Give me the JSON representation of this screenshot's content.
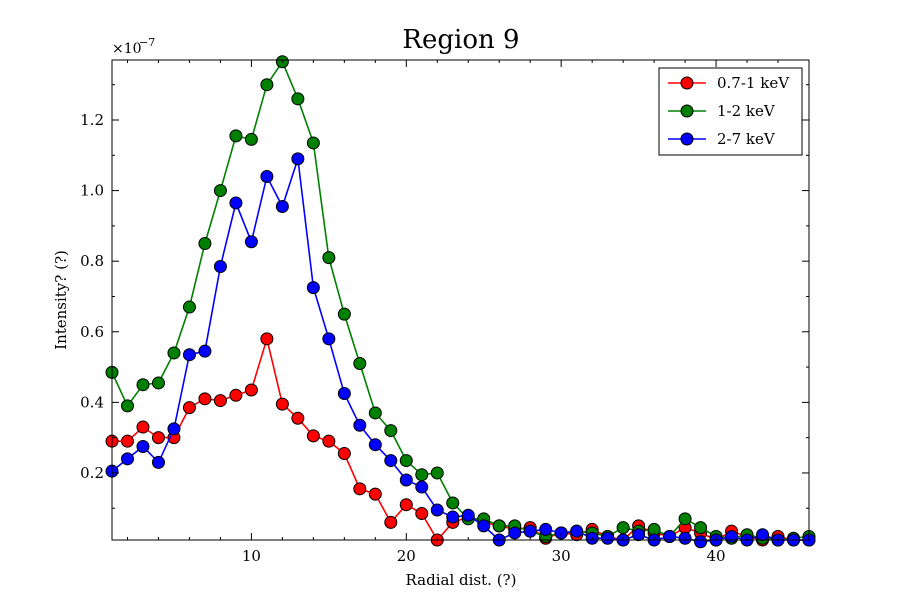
{
  "chart_data": {
    "type": "line",
    "title": "Region 9",
    "xlabel": "Radial dist. (?)",
    "ylabel": "Intensity? (?)",
    "xlim": [
      1,
      46
    ],
    "ylim": [
      0.01,
      1.37
    ],
    "y_scale_exponent_base": "×10",
    "y_scale_exponent": "−7",
    "x_ticks": [
      10,
      20,
      30,
      40
    ],
    "y_ticks": [
      0.2,
      0.4,
      0.6,
      0.8,
      1.0,
      1.2
    ],
    "legend_position": "top-right",
    "grid": false,
    "x": [
      1,
      2,
      3,
      4,
      5,
      6,
      7,
      8,
      9,
      10,
      11,
      12,
      13,
      14,
      15,
      16,
      17,
      18,
      19,
      20,
      21,
      22,
      23,
      24,
      25,
      26,
      27,
      28,
      29,
      30,
      31,
      32,
      33,
      34,
      35,
      36,
      37,
      38,
      39,
      40,
      41,
      42,
      43,
      44,
      45,
      46
    ],
    "series": [
      {
        "name": "0.7-1 keV",
        "color": "#ff0000",
        "values": [
          0.29,
          0.29,
          0.33,
          0.3,
          0.3,
          0.385,
          0.41,
          0.405,
          0.42,
          0.435,
          0.58,
          0.395,
          0.355,
          0.305,
          0.29,
          0.255,
          0.155,
          0.14,
          0.06,
          0.11,
          0.085,
          0.01,
          0.06,
          0.075,
          0.06,
          0.05,
          0.04,
          0.045,
          0.015,
          0.03,
          0.025,
          0.04,
          0.02,
          0.01,
          0.05,
          0.03,
          0.02,
          0.045,
          0.03,
          0.01,
          0.035,
          0.02,
          0.01,
          0.02,
          0.01,
          0.01
        ]
      },
      {
        "name": "1-2 keV",
        "color": "#008000",
        "values": [
          0.485,
          0.39,
          0.45,
          0.455,
          0.54,
          0.67,
          0.85,
          1.0,
          1.155,
          1.145,
          1.3,
          1.365,
          1.26,
          1.135,
          0.81,
          0.65,
          0.51,
          0.37,
          0.32,
          0.235,
          0.195,
          0.2,
          0.115,
          0.07,
          0.07,
          0.05,
          0.05,
          0.035,
          0.02,
          0.03,
          0.035,
          0.03,
          0.02,
          0.045,
          0.035,
          0.04,
          0.02,
          0.07,
          0.045,
          0.02,
          0.015,
          0.025,
          0.015,
          0.01,
          0.015,
          0.02
        ]
      },
      {
        "name": "2-7 keV",
        "color": "#0000ff",
        "values": [
          0.205,
          0.24,
          0.275,
          0.23,
          0.325,
          0.535,
          0.545,
          0.785,
          0.965,
          0.855,
          1.04,
          0.955,
          1.09,
          0.725,
          0.58,
          0.425,
          0.335,
          0.28,
          0.235,
          0.18,
          0.16,
          0.095,
          0.075,
          0.08,
          0.05,
          0.01,
          0.03,
          0.035,
          0.04,
          0.03,
          0.035,
          0.015,
          0.015,
          0.01,
          0.025,
          0.01,
          0.02,
          0.015,
          0.005,
          0.01,
          0.02,
          0.01,
          0.025,
          0.01,
          0.01,
          0.01
        ]
      }
    ]
  }
}
